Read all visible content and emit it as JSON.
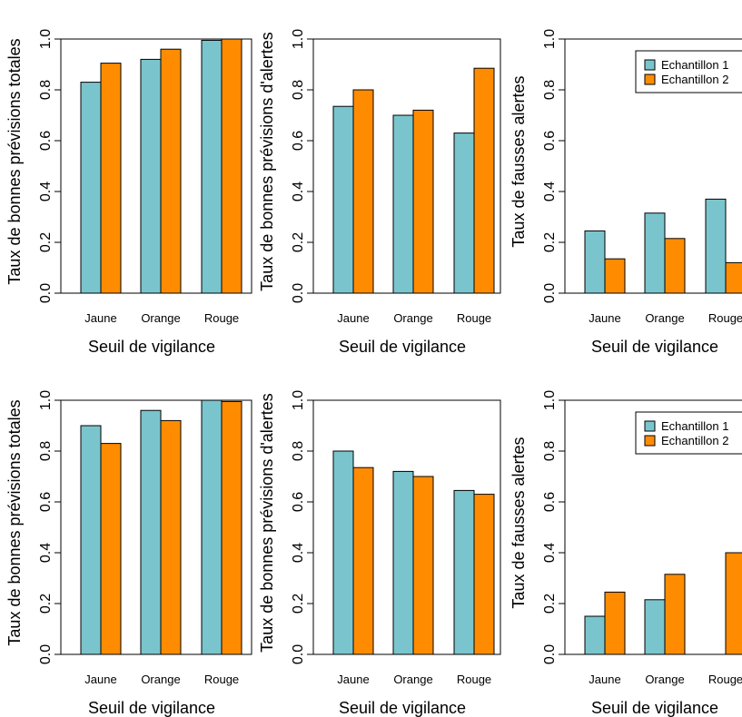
{
  "colors": {
    "series1": "#7ac5cd",
    "series2": "#ff8c00",
    "axis": "#000000"
  },
  "chart_data": [
    {
      "type": "bar",
      "categories": [
        "Jaune",
        "Orange",
        "Rouge"
      ],
      "series": [
        {
          "name": "Echantillon 1",
          "values": [
            0.83,
            0.92,
            0.995
          ]
        },
        {
          "name": "Echantillon 2",
          "values": [
            0.905,
            0.96,
            1.0
          ]
        }
      ],
      "xlabel": "Seuil de vigilance",
      "ylabel": "Taux de bonnes prévisions totales",
      "ylim": [
        0,
        1
      ],
      "yticks": [
        "0.0",
        "0.2",
        "0.4",
        "0.6",
        "0.8",
        "1.0"
      ],
      "legend": null
    },
    {
      "type": "bar",
      "categories": [
        "Jaune",
        "Orange",
        "Rouge"
      ],
      "series": [
        {
          "name": "Echantillon 1",
          "values": [
            0.735,
            0.7,
            0.63
          ]
        },
        {
          "name": "Echantillon 2",
          "values": [
            0.8,
            0.72,
            0.885
          ]
        }
      ],
      "xlabel": "Seuil de vigilance",
      "ylabel": "Taux de bonnes prévisions d'alertes",
      "ylim": [
        0,
        1
      ],
      "yticks": [
        "0.0",
        "0.2",
        "0.4",
        "0.6",
        "0.8",
        "1.0"
      ],
      "legend": null
    },
    {
      "type": "bar",
      "categories": [
        "Jaune",
        "Orange",
        "Rouge"
      ],
      "series": [
        {
          "name": "Echantillon 1",
          "values": [
            0.245,
            0.315,
            0.37
          ]
        },
        {
          "name": "Echantillon 2",
          "values": [
            0.135,
            0.215,
            0.12
          ]
        }
      ],
      "xlabel": "Seuil de vigilance",
      "ylabel": "Taux de fausses alertes",
      "ylim": [
        0,
        1
      ],
      "yticks": [
        "0.0",
        "0.2",
        "0.4",
        "0.6",
        "0.8",
        "1.0"
      ],
      "legend": "top-right"
    },
    {
      "type": "bar",
      "categories": [
        "Jaune",
        "Orange",
        "Rouge"
      ],
      "series": [
        {
          "name": "Echantillon 1",
          "values": [
            0.9,
            0.96,
            1.0
          ]
        },
        {
          "name": "Echantillon 2",
          "values": [
            0.83,
            0.92,
            0.995
          ]
        }
      ],
      "xlabel": "Seuil de vigilance",
      "ylabel": "Taux de bonnes prévisions totales",
      "ylim": [
        0,
        1
      ],
      "yticks": [
        "0.0",
        "0.2",
        "0.4",
        "0.6",
        "0.8",
        "1.0"
      ],
      "legend": null
    },
    {
      "type": "bar",
      "categories": [
        "Jaune",
        "Orange",
        "Rouge"
      ],
      "series": [
        {
          "name": "Echantillon 1",
          "values": [
            0.8,
            0.72,
            0.645
          ]
        },
        {
          "name": "Echantillon 2",
          "values": [
            0.735,
            0.7,
            0.63
          ]
        }
      ],
      "xlabel": "Seuil de vigilance",
      "ylabel": "Taux de bonnes prévisions d'alertes",
      "ylim": [
        0,
        1
      ],
      "yticks": [
        "0.0",
        "0.2",
        "0.4",
        "0.6",
        "0.8",
        "1.0"
      ],
      "legend": null
    },
    {
      "type": "bar",
      "categories": [
        "Jaune",
        "Orange",
        "Rouge"
      ],
      "series": [
        {
          "name": "Echantillon 1",
          "values": [
            0.15,
            0.215,
            0.0
          ]
        },
        {
          "name": "Echantillon 2",
          "values": [
            0.245,
            0.315,
            0.4
          ]
        }
      ],
      "xlabel": "Seuil de vigilance",
      "ylabel": "Taux de fausses alertes",
      "ylim": [
        0,
        1
      ],
      "yticks": [
        "0.0",
        "0.2",
        "0.4",
        "0.6",
        "0.8",
        "1.0"
      ],
      "legend": "top-right"
    }
  ]
}
